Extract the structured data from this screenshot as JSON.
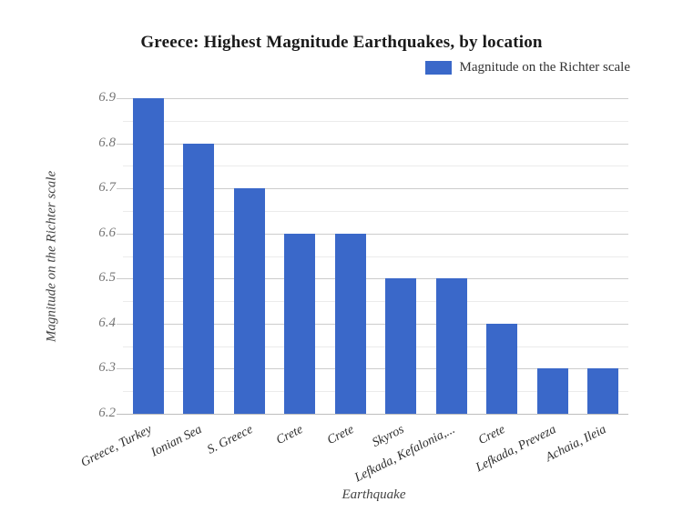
{
  "title": "Greece: Highest Magnitude Earthquakes, by location",
  "legend": {
    "label": "Magnitude on the Richter scale"
  },
  "chart_data": {
    "type": "bar",
    "title": "Greece: Highest Magnitude Earthquakes, by location",
    "categories": [
      "Greece, Turkey",
      "Ionian Sea",
      "S. Greece",
      "Crete",
      "Crete",
      "Skyros",
      "Lefkada, Kefalonia,...",
      "Crete",
      "Lefkada, Preveza",
      "Achaia, Ileia"
    ],
    "values": [
      6.9,
      6.8,
      6.7,
      6.6,
      6.6,
      6.5,
      6.5,
      6.4,
      6.3,
      6.3
    ],
    "xlabel": "Earthquake",
    "ylabel": "Magnitude on the Richter scale",
    "ylim": [
      6.2,
      6.9
    ],
    "yticks": [
      6.2,
      6.3,
      6.4,
      6.5,
      6.6,
      6.7,
      6.8,
      6.9
    ],
    "ytick_step": 0.1,
    "minor_tick_step": 0.05,
    "grid": true,
    "legend": "Magnitude on the Richter scale",
    "legend_position": "top-right",
    "colors": {
      "bar": "#3A68C9",
      "title_text": "#1a1a1a",
      "legend_text": "#333333",
      "y_tick_text": "#757575",
      "x_tick_text": "#2e2e2e",
      "axis_title_text": "#424242",
      "grid_major": "#cccccc",
      "grid_minor": "#ebebeb",
      "baseline": "#bdbdbd",
      "background": "#ffffff"
    }
  }
}
